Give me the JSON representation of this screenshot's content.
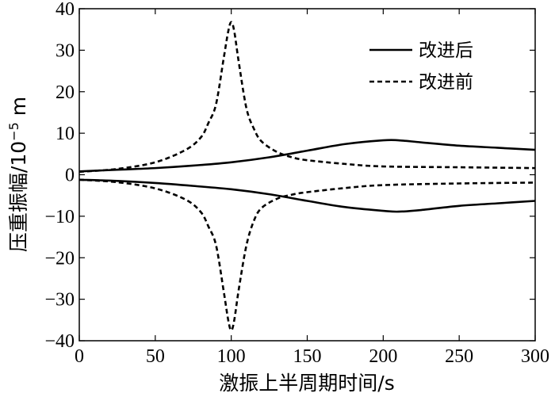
{
  "chart_data": {
    "type": "line",
    "xlabel": "激振上半周期时间/s",
    "ylabel": "压重振幅/10",
    "ylabel_exponent": "−5",
    "ylabel_unit": " m",
    "xlim": [
      0,
      300
    ],
    "ylim": [
      -40,
      40
    ],
    "xticks": [
      0,
      50,
      100,
      150,
      200,
      250,
      300
    ],
    "yticks": [
      -40,
      -30,
      -20,
      -10,
      0,
      10,
      20,
      30,
      40
    ],
    "xtick_labels": [
      "0",
      "50",
      "100",
      "150",
      "200",
      "250",
      "300"
    ],
    "ytick_labels": [
      "−40",
      "−30",
      "−20",
      "−10",
      "0",
      "10",
      "20",
      "30",
      "40"
    ],
    "grid": false,
    "legend_position": "top-right",
    "series": [
      {
        "name": "改进后",
        "style": "solid",
        "x": [
          0,
          25,
          50,
          75,
          100,
          125,
          150,
          175,
          200,
          210,
          225,
          250,
          275,
          300
        ],
        "y": [
          0.8,
          1.2,
          1.6,
          2.2,
          3.0,
          4.2,
          5.8,
          7.4,
          8.3,
          8.3,
          7.8,
          7.0,
          6.5,
          6.0
        ]
      },
      {
        "name": "",
        "style": "solid",
        "x": [
          0,
          25,
          50,
          75,
          100,
          125,
          150,
          175,
          200,
          210,
          225,
          250,
          275,
          300
        ],
        "y": [
          -1.2,
          -1.5,
          -2.0,
          -2.7,
          -3.5,
          -4.7,
          -6.3,
          -7.8,
          -8.7,
          -8.9,
          -8.5,
          -7.5,
          -6.9,
          -6.3
        ]
      },
      {
        "name": "改进前",
        "style": "dashed",
        "x": [
          0,
          25,
          50,
          70,
          80,
          85,
          90,
          95,
          98,
          100,
          102,
          105,
          110,
          115,
          120,
          130,
          140,
          150,
          175,
          200,
          250,
          300
        ],
        "y": [
          0.7,
          1.4,
          3.0,
          6.0,
          9.0,
          12.5,
          17.0,
          28.0,
          34.5,
          36.8,
          34.5,
          27.0,
          16.0,
          11.0,
          8.0,
          5.5,
          4.2,
          3.5,
          2.6,
          2.0,
          1.8,
          1.6
        ]
      },
      {
        "name": "",
        "style": "dashed",
        "x": [
          0,
          25,
          50,
          70,
          80,
          85,
          90,
          95,
          98,
          100,
          102,
          105,
          110,
          115,
          120,
          130,
          140,
          150,
          175,
          200,
          250,
          300
        ],
        "y": [
          -1.2,
          -1.8,
          -3.3,
          -6.0,
          -9.0,
          -12.5,
          -17.0,
          -28.0,
          -35.0,
          -37.5,
          -35.0,
          -27.5,
          -17.0,
          -11.0,
          -8.0,
          -5.8,
          -4.8,
          -4.2,
          -3.2,
          -2.5,
          -2.1,
          -1.9
        ]
      }
    ]
  }
}
